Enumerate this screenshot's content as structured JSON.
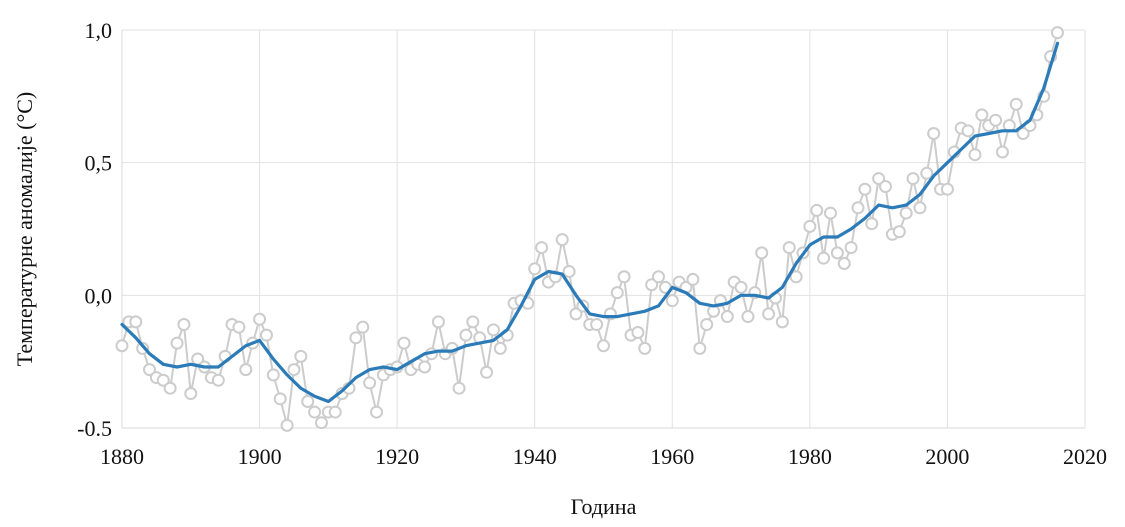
{
  "chart_data": {
    "type": "line",
    "xlabel": "Година",
    "ylabel": "Температурне аномалије (°C)",
    "xlim": [
      1880,
      2020
    ],
    "ylim": [
      -0.5,
      1.0
    ],
    "xticks": [
      1880,
      1900,
      1920,
      1940,
      1960,
      1980,
      2000,
      2020
    ],
    "xtick_labels": [
      "1880",
      "1900",
      "1920",
      "1940",
      "1960",
      "1980",
      "2000",
      "2020"
    ],
    "yticks": [
      1.0,
      0.5,
      0.0,
      -0.5
    ],
    "ytick_labels": [
      "1,0",
      "0,5",
      "0,0",
      "-0.5"
    ],
    "grid": true,
    "colors": {
      "smoothed": "#2b7bb9",
      "annual": "#cccccc",
      "grid": "#e2e2e2"
    },
    "series": [
      {
        "style": "markers+line",
        "x": [
          1880,
          1881,
          1882,
          1883,
          1884,
          1885,
          1886,
          1887,
          1888,
          1889,
          1890,
          1891,
          1892,
          1893,
          1894,
          1895,
          1896,
          1897,
          1898,
          1899,
          1900,
          1901,
          1902,
          1903,
          1904,
          1905,
          1906,
          1907,
          1908,
          1909,
          1910,
          1911,
          1912,
          1913,
          1914,
          1915,
          1916,
          1917,
          1918,
          1919,
          1920,
          1921,
          1922,
          1923,
          1924,
          1925,
          1926,
          1927,
          1928,
          1929,
          1930,
          1931,
          1932,
          1933,
          1934,
          1935,
          1936,
          1937,
          1938,
          1939,
          1940,
          1941,
          1942,
          1943,
          1944,
          1945,
          1946,
          1947,
          1948,
          1949,
          1950,
          1951,
          1952,
          1953,
          1954,
          1955,
          1956,
          1957,
          1958,
          1959,
          1960,
          1961,
          1962,
          1963,
          1964,
          1965,
          1966,
          1967,
          1968,
          1969,
          1970,
          1971,
          1972,
          1973,
          1974,
          1975,
          1976,
          1977,
          1978,
          1979,
          1980,
          1981,
          1982,
          1983,
          1984,
          1985,
          1986,
          1987,
          1988,
          1989,
          1990,
          1991,
          1992,
          1993,
          1994,
          1995,
          1996,
          1997,
          1998,
          1999,
          2000,
          2001,
          2002,
          2003,
          2004,
          2005,
          2006,
          2007,
          2008,
          2009,
          2010,
          2011,
          2012,
          2013,
          2014,
          2015,
          2016
        ],
        "values": [
          -0.19,
          -0.1,
          -0.1,
          -0.2,
          -0.28,
          -0.31,
          -0.32,
          -0.35,
          -0.18,
          -0.11,
          -0.37,
          -0.24,
          -0.27,
          -0.31,
          -0.32,
          -0.23,
          -0.11,
          -0.12,
          -0.28,
          -0.18,
          -0.09,
          -0.15,
          -0.3,
          -0.39,
          -0.49,
          -0.28,
          -0.23,
          -0.4,
          -0.44,
          -0.48,
          -0.44,
          -0.44,
          -0.37,
          -0.35,
          -0.16,
          -0.12,
          -0.33,
          -0.44,
          -0.3,
          -0.28,
          -0.27,
          -0.18,
          -0.28,
          -0.26,
          -0.27,
          -0.22,
          -0.1,
          -0.22,
          -0.2,
          -0.35,
          -0.15,
          -0.1,
          -0.16,
          -0.29,
          -0.13,
          -0.2,
          -0.15,
          -0.03,
          -0.02,
          -0.03,
          0.1,
          0.18,
          0.05,
          0.07,
          0.21,
          0.09,
          -0.07,
          -0.04,
          -0.11,
          -0.11,
          -0.19,
          -0.07,
          0.01,
          0.07,
          -0.15,
          -0.14,
          -0.2,
          0.04,
          0.07,
          0.03,
          -0.02,
          0.05,
          0.03,
          0.06,
          -0.2,
          -0.11,
          -0.06,
          -0.02,
          -0.08,
          0.05,
          0.03,
          -0.08,
          0.01,
          0.16,
          -0.07,
          -0.01,
          -0.1,
          0.18,
          0.07,
          0.16,
          0.26,
          0.32,
          0.14,
          0.31,
          0.16,
          0.12,
          0.18,
          0.33,
          0.4,
          0.27,
          0.44,
          0.41,
          0.23,
          0.24,
          0.31,
          0.44,
          0.33,
          0.46,
          0.61,
          0.4,
          0.4,
          0.54,
          0.63,
          0.62,
          0.53,
          0.68,
          0.64,
          0.66,
          0.54,
          0.64,
          0.72,
          0.61,
          0.64,
          0.68,
          0.75,
          0.9,
          0.99
        ]
      },
      {
        "style": "line",
        "x": [
          1880,
          1882,
          1884,
          1886,
          1888,
          1890,
          1892,
          1894,
          1896,
          1898,
          1900,
          1902,
          1904,
          1906,
          1908,
          1910,
          1912,
          1914,
          1916,
          1918,
          1920,
          1922,
          1924,
          1926,
          1928,
          1930,
          1932,
          1934,
          1936,
          1938,
          1940,
          1942,
          1944,
          1946,
          1948,
          1950,
          1952,
          1954,
          1956,
          1958,
          1960,
          1962,
          1964,
          1966,
          1968,
          1970,
          1972,
          1974,
          1976,
          1978,
          1980,
          1982,
          1984,
          1986,
          1988,
          1990,
          1992,
          1994,
          1996,
          1998,
          2000,
          2002,
          2004,
          2006,
          2008,
          2010,
          2012,
          2014,
          2016
        ],
        "values": [
          -0.11,
          -0.16,
          -0.22,
          -0.26,
          -0.27,
          -0.26,
          -0.27,
          -0.27,
          -0.23,
          -0.19,
          -0.17,
          -0.24,
          -0.3,
          -0.35,
          -0.38,
          -0.4,
          -0.36,
          -0.31,
          -0.28,
          -0.27,
          -0.28,
          -0.25,
          -0.22,
          -0.21,
          -0.21,
          -0.19,
          -0.18,
          -0.17,
          -0.13,
          -0.04,
          0.06,
          0.09,
          0.08,
          0.0,
          -0.07,
          -0.08,
          -0.08,
          -0.07,
          -0.06,
          -0.04,
          0.03,
          0.01,
          -0.03,
          -0.04,
          -0.03,
          0.0,
          0.0,
          -0.01,
          0.03,
          0.12,
          0.19,
          0.22,
          0.22,
          0.25,
          0.29,
          0.34,
          0.33,
          0.34,
          0.38,
          0.45,
          0.5,
          0.55,
          0.6,
          0.61,
          0.62,
          0.62,
          0.66,
          0.78,
          0.95
        ]
      }
    ]
  }
}
